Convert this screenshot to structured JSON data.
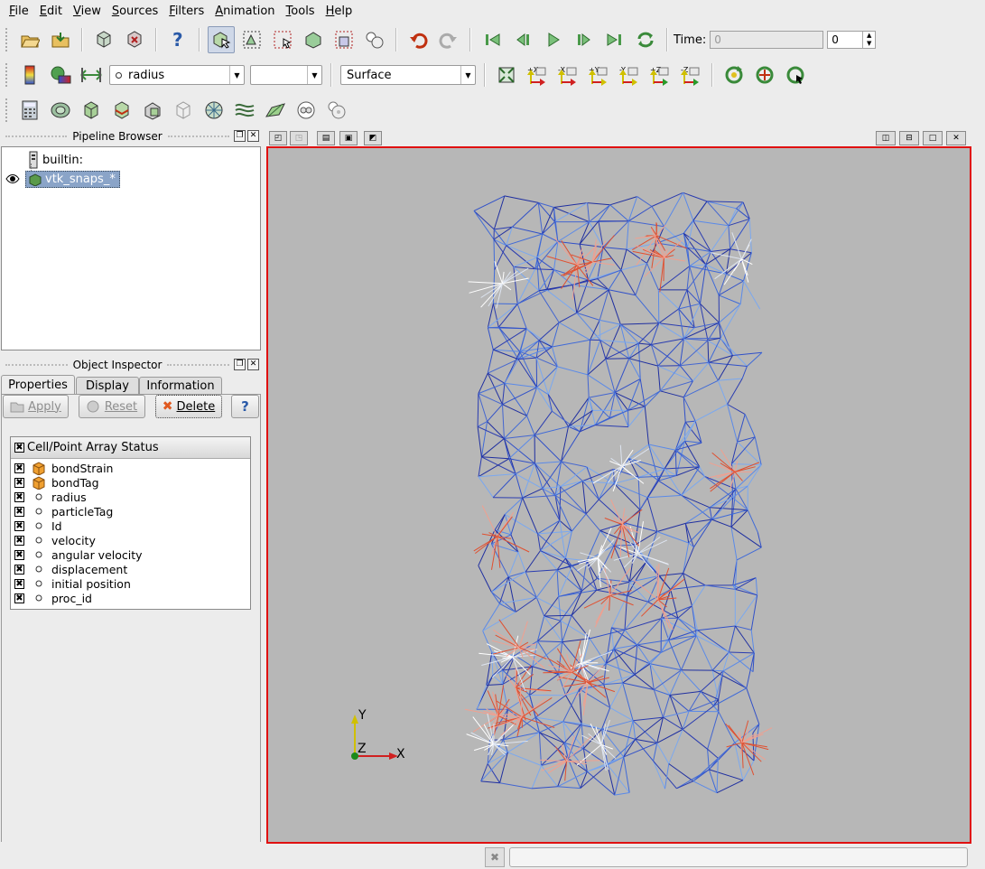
{
  "menu": [
    "File",
    "Edit",
    "View",
    "Sources",
    "Filters",
    "Animation",
    "Tools",
    "Help"
  ],
  "menu_accel": [
    "F",
    "E",
    "V",
    "S",
    "F",
    "A",
    "T",
    "H"
  ],
  "time": {
    "label": "Time:",
    "field_value": "0",
    "spin_value": "0"
  },
  "toolbar2": {
    "color_by": "radius",
    "component": "",
    "representation": "Surface"
  },
  "axis_buttons": [
    "+X",
    "-X",
    "+Y",
    "-Y",
    "+Z",
    "-Z"
  ],
  "pipeline": {
    "title": "Pipeline Browser",
    "root": "builtin:",
    "source": "vtk_snaps_*"
  },
  "inspector": {
    "title": "Object Inspector",
    "tabs": [
      "Properties",
      "Display",
      "Information"
    ],
    "apply": "Apply",
    "reset": "Reset",
    "delete": "Delete",
    "help": "?",
    "array_header": "Cell/Point Array Status",
    "arrays": [
      {
        "name": "bondStrain",
        "kind": "cell"
      },
      {
        "name": "bondTag",
        "kind": "cell"
      },
      {
        "name": "radius",
        "kind": "point"
      },
      {
        "name": "particleTag",
        "kind": "point"
      },
      {
        "name": "Id",
        "kind": "point"
      },
      {
        "name": "velocity",
        "kind": "point"
      },
      {
        "name": "angular velocity",
        "kind": "point"
      },
      {
        "name": "displacement",
        "kind": "point"
      },
      {
        "name": "initial position",
        "kind": "point"
      },
      {
        "name": "proc_id",
        "kind": "point"
      }
    ]
  },
  "axes": {
    "x": "X",
    "y": "Y",
    "z": "Z"
  },
  "colors": {
    "viewport_bg": "#b7b7b7",
    "active_border": "#e01010",
    "selection": "#8aa4c8"
  }
}
